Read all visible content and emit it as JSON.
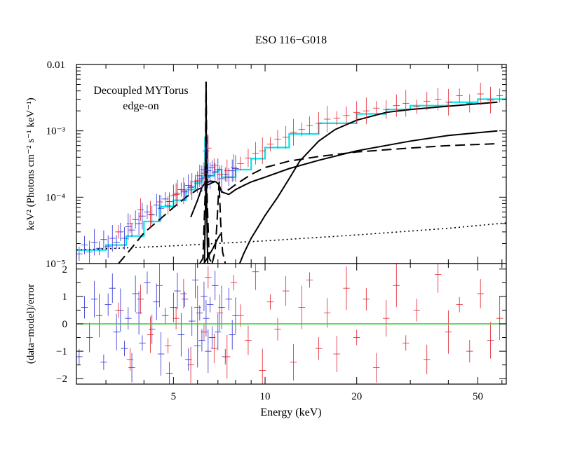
{
  "chart_data": [
    {
      "panel": "spectrum",
      "type": "line",
      "title": "ESO 116−G018",
      "ylabel": "keV² (Photons cm⁻² s⁻¹ keV⁻¹)",
      "xlabel": "",
      "x_scale": "log",
      "y_scale": "log",
      "xlim": [
        2.4,
        62
      ],
      "ylim": [
        1e-05,
        0.01
      ],
      "y_tick_labels": [
        {
          "value": 1e-05,
          "label": "10⁻⁵"
        },
        {
          "value": 0.0001,
          "label": "10⁻⁴"
        },
        {
          "value": 0.001,
          "label": "10⁻³"
        },
        {
          "value": 0.01,
          "label": "0.01"
        }
      ],
      "annotation": [
        "Decoupled MYTorus",
        "edge-on"
      ],
      "series": [
        {
          "role": "total-model",
          "color": "#00e5ee",
          "style": "step",
          "x": [
            2.4,
            3.0,
            3.5,
            4.0,
            4.5,
            5.0,
            5.5,
            5.9,
            6.2,
            6.35,
            6.45,
            6.55,
            6.8,
            7.0,
            7.2,
            7.6,
            8.0,
            9.0,
            10,
            12,
            15,
            20,
            25,
            30,
            40,
            50,
            62
          ],
          "y": [
            1.6e-05,
            1.9e-05,
            2.6e-05,
            4.3e-05,
            7.2e-05,
            9e-05,
            0.00013,
            0.00017,
            0.0002,
            0.0008,
            0.0002,
            0.00021,
            0.00024,
            0.00026,
            0.0002,
            0.0002,
            0.00026,
            0.00038,
            0.00056,
            0.0009,
            0.0013,
            0.0018,
            0.0021,
            0.0024,
            0.0027,
            0.003,
            0.0033
          ]
        },
        {
          "role": "scattered-continuum",
          "color": "#000000",
          "style": "dashed",
          "x": [
            3.3,
            3.6,
            4.0,
            4.5,
            5.0,
            5.5,
            6.0,
            6.4,
            6.8,
            7.0,
            7.2,
            7.6,
            8.0,
            9.0,
            10,
            12,
            15,
            20,
            30,
            40,
            58
          ],
          "y": [
            1e-05,
            1.6e-05,
            2.9e-05,
            4.6e-05,
            7e-05,
            0.0001,
            0.00013,
            0.00015,
            0.00017,
            0.000165,
            0.00012,
            0.00013,
            0.000155,
            0.00022,
            0.00028,
            0.00035,
            0.00041,
            0.00048,
            0.00055,
            0.0006,
            0.00064
          ]
        },
        {
          "role": "reflection-continuum",
          "color": "#000000",
          "style": "solid",
          "x": [
            5.7,
            6.0,
            6.2,
            6.35,
            6.4,
            6.45,
            6.6,
            6.9,
            7.05,
            7.2,
            7.6,
            8.0,
            8.5,
            9.0,
            10,
            12,
            15,
            20,
            30,
            40,
            58
          ],
          "y": [
            5e-05,
            9e-05,
            0.00014,
            0.000165,
            0.00017,
            0.000165,
            0.000175,
            0.00017,
            0.000155,
            0.00012,
            0.00011,
            0.00013,
            0.00015,
            0.00017,
            0.0002,
            0.00027,
            0.00036,
            0.0005,
            0.0007,
            0.00085,
            0.001
          ]
        },
        {
          "role": "transmitted-continuum",
          "color": "#000000",
          "style": "solid",
          "x": [
            8.25,
            8.5,
            9.0,
            9.5,
            10,
            11,
            12,
            13,
            15,
            17,
            20,
            25,
            30,
            40,
            58
          ],
          "y": [
            1e-05,
            1.4e-05,
            2.4e-05,
            3.6e-05,
            5.3e-05,
            0.0001,
            0.00019,
            0.00035,
            0.0007,
            0.00105,
            0.00145,
            0.0019,
            0.0021,
            0.00235,
            0.0027
          ]
        },
        {
          "role": "scattered-power-law",
          "color": "#000000",
          "style": "dotted",
          "x": [
            2.4,
            5,
            10,
            20,
            40,
            62
          ],
          "y": [
            1.6e-05,
            1.85e-05,
            2.2e-05,
            2.7e-05,
            3.4e-05,
            4.1e-05
          ]
        },
        {
          "role": "fe-ka-line",
          "color": "#000000",
          "style": "solid",
          "x": [
            6.2,
            6.32,
            6.38,
            6.4,
            6.42,
            6.48,
            6.6
          ],
          "y": [
            1e-05,
            1e-05,
            0.0001,
            0.0055,
            0.0001,
            1e-05,
            1e-05
          ]
        },
        {
          "role": "fe-ka-line-dashed",
          "color": "#000000",
          "style": "dashed",
          "x": [
            6.1,
            6.25,
            6.35,
            6.4,
            6.45,
            6.55,
            6.7
          ],
          "y": [
            1e-05,
            1.2e-05,
            0.0001,
            0.0055,
            0.0001,
            1.2e-05,
            1e-05
          ]
        },
        {
          "role": "fe-kb-line",
          "color": "#000000",
          "style": "dashed",
          "x": [
            6.7,
            6.85,
            6.95,
            7.06,
            7.15,
            7.25,
            7.4
          ],
          "y": [
            1e-05,
            1.5e-05,
            4e-05,
            0.00017,
            4e-05,
            1.5e-05,
            1e-05
          ]
        },
        {
          "role": "reflection-low",
          "color": "#000000",
          "style": "solid",
          "x": [
            6.3,
            6.45,
            6.7,
            7.0,
            7.15
          ],
          "y": [
            1e-05,
            1.2e-05,
            1.6e-05,
            2.4e-05,
            2.8e-05
          ]
        },
        {
          "role": "spectrum-blue",
          "color": "#2b2bd6",
          "style": "errorbars",
          "x": [
            2.45,
            2.55,
            2.65,
            2.75,
            2.85,
            2.95,
            3.05,
            3.15,
            3.25,
            3.35,
            3.45,
            3.55,
            3.65,
            3.75,
            3.85,
            3.95,
            4.1,
            4.25,
            4.4,
            4.55,
            4.7,
            4.85,
            5.0,
            5.15,
            5.3,
            5.45,
            5.6,
            5.75,
            5.9,
            6.0,
            6.1,
            6.2,
            6.3,
            6.4,
            6.5,
            6.6,
            6.7,
            6.85,
            7.0,
            7.2,
            7.4,
            7.6,
            7.8,
            8.0
          ],
          "y": [
            1.4e-05,
            1.9e-05,
            1.5e-05,
            2.1e-05,
            1.7e-05,
            2.3e-05,
            1.8e-05,
            2.4e-05,
            2.1e-05,
            3e-05,
            2.4e-05,
            3.6e-05,
            3.2e-05,
            4.6e-05,
            4e-05,
            5.2e-05,
            6e-05,
            5.4e-05,
            7.6e-05,
            6.8e-05,
            9.4e-05,
            8.6e-05,
            0.000105,
            0.000115,
            0.00013,
            0.00012,
            0.00015,
            0.000145,
            0.00017,
            0.00016,
            0.00021,
            0.00019,
            0.00026,
            0.0005,
            0.00025,
            0.00021,
            0.00028,
            0.00024,
            0.00026,
            0.00019,
            0.00022,
            0.0002,
            0.00025,
            0.00027
          ]
        },
        {
          "role": "spectrum-red",
          "color": "#e0202a",
          "style": "errorbars",
          "x": [
            3.3,
            3.6,
            3.9,
            4.2,
            4.5,
            4.8,
            5.1,
            5.4,
            5.7,
            6.0,
            6.3,
            6.5,
            6.8,
            7.1,
            7.5,
            7.9,
            8.3,
            8.8,
            9.3,
            9.8,
            10.4,
            11.0,
            11.7,
            12.4,
            13.2,
            14.0,
            15.0,
            16.0,
            17.2,
            18.5,
            20.0,
            21.5,
            23.2,
            25.0,
            27.0,
            29.0,
            31.5,
            34.0,
            37.0,
            40.0,
            43.5,
            47.0,
            51.0,
            55.0,
            59.0
          ],
          "y": [
            3e-05,
            4e-05,
            6.5e-05,
            5.5e-05,
            8.5e-05,
            7.5e-05,
            0.00011,
            0.000125,
            0.00014,
            0.00018,
            0.00023,
            0.00055,
            0.0003,
            0.00022,
            0.00025,
            0.00028,
            0.00032,
            0.00039,
            0.00046,
            0.0005,
            0.00063,
            0.00075,
            0.0008,
            0.00095,
            0.00105,
            0.0012,
            0.0013,
            0.0015,
            0.00155,
            0.0017,
            0.0019,
            0.002,
            0.0022,
            0.0021,
            0.0024,
            0.0026,
            0.0023,
            0.0028,
            0.003,
            0.0027,
            0.0034,
            0.0026,
            0.0036,
            0.0029,
            0.0034
          ]
        }
      ]
    },
    {
      "panel": "residuals",
      "type": "scatter",
      "xlabel": "Energy (keV)",
      "ylabel": "(data−model)/error",
      "x_scale": "log",
      "xlim": [
        2.4,
        62
      ],
      "ylim": [
        -2.2,
        2.2
      ],
      "x_tick_labels": [
        {
          "value": 5,
          "label": "5"
        },
        {
          "value": 10,
          "label": "10"
        },
        {
          "value": 20,
          "label": "20"
        },
        {
          "value": 50,
          "label": "50"
        }
      ],
      "y_tick_labels": [
        {
          "value": -2,
          "label": "−2"
        },
        {
          "value": -1,
          "label": "−1"
        },
        {
          "value": 0,
          "label": "0"
        },
        {
          "value": 1,
          "label": "1"
        },
        {
          "value": 2,
          "label": "2"
        }
      ],
      "zero_line_color": "#33cc33",
      "series": [
        {
          "role": "residual-blue",
          "color": "#2b2bd6",
          "style": "errorbars",
          "x": [
            2.45,
            2.55,
            2.65,
            2.75,
            2.85,
            2.95,
            3.05,
            3.15,
            3.25,
            3.35,
            3.45,
            3.55,
            3.65,
            3.75,
            3.85,
            3.95,
            4.1,
            4.25,
            4.4,
            4.55,
            4.7,
            4.85,
            5.0,
            5.15,
            5.3,
            5.45,
            5.6,
            5.75,
            5.9,
            6.0,
            6.1,
            6.2,
            6.3,
            6.4,
            6.5,
            6.6,
            6.7,
            6.85,
            7.0,
            7.2,
            7.4,
            7.6,
            7.8,
            8.0
          ],
          "y": [
            -1.2,
            0.6,
            -0.5,
            0.9,
            0.3,
            -1.4,
            0.7,
            1.3,
            -0.3,
            0.5,
            -0.9,
            0.2,
            -1.6,
            1.1,
            0.4,
            -0.7,
            1.5,
            -0.2,
            0.8,
            -1.1,
            0.3,
            -1.8,
            0.6,
            1.2,
            -0.4,
            0.9,
            -1.3,
            0.1,
            1.6,
            -0.8,
            0.4,
            -0.6,
            1.0,
            0.2,
            -1.0,
            0.7,
            -0.5,
            1.4,
            -0.3,
            0.6,
            -1.2,
            0.9,
            -0.4,
            0.3
          ]
        },
        {
          "role": "residual-red",
          "color": "#e0202a",
          "style": "errorbars",
          "x": [
            3.3,
            3.6,
            3.9,
            4.2,
            4.5,
            4.8,
            5.1,
            5.4,
            5.7,
            6.0,
            6.3,
            6.5,
            6.8,
            7.1,
            7.5,
            7.9,
            8.3,
            8.8,
            9.3,
            9.8,
            10.4,
            11.0,
            11.7,
            12.4,
            13.2,
            14.0,
            15.0,
            16.0,
            17.2,
            18.5,
            20.0,
            21.5,
            23.2,
            25.0,
            27.0,
            29.0,
            31.5,
            34.0,
            37.0,
            40.0,
            43.5,
            47.0,
            51.0,
            55.0,
            59.0
          ],
          "y": [
            0.5,
            -1.3,
            0.9,
            -0.4,
            1.4,
            -0.8,
            0.2,
            1.1,
            -1.5,
            0.6,
            -0.3,
            1.7,
            -0.9,
            0.4,
            -1.2,
            1.5,
            0.3,
            -0.6,
            1.9,
            -1.7,
            0.8,
            -0.2,
            1.2,
            -1.4,
            0.6,
            1.6,
            -0.9,
            0.4,
            -1.1,
            1.3,
            -0.5,
            0.9,
            -1.6,
            0.2,
            1.4,
            -0.7,
            0.5,
            -1.3,
            1.8,
            -0.3,
            0.7,
            -1.0,
            1.1,
            -0.6,
            0.2
          ]
        }
      ]
    }
  ]
}
